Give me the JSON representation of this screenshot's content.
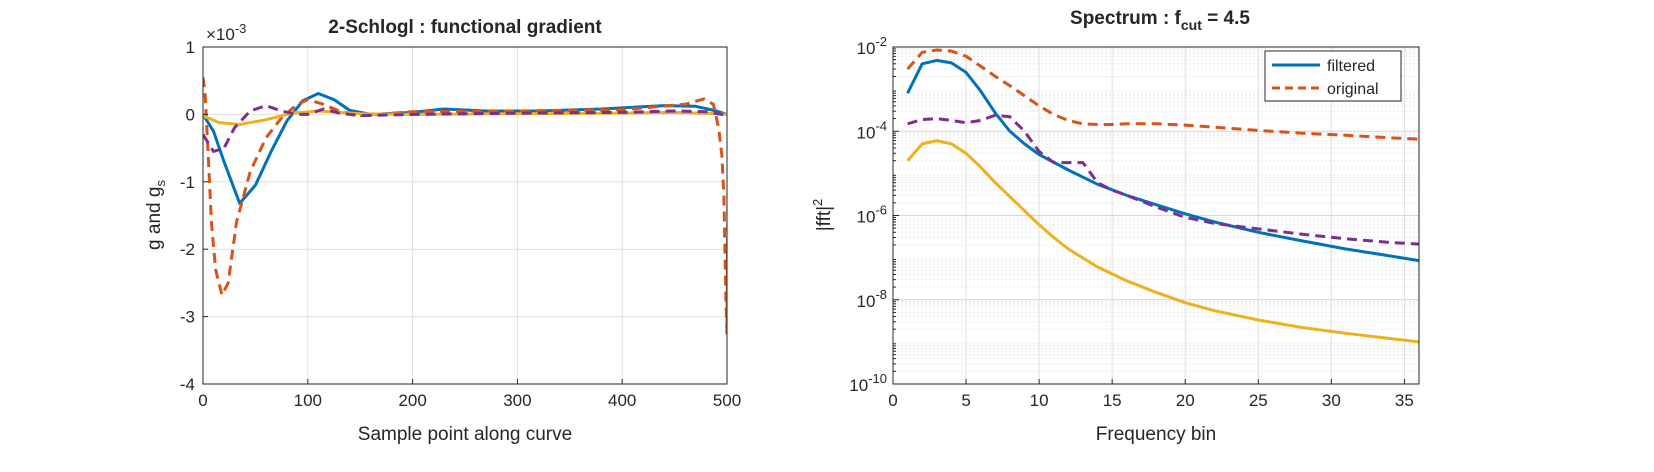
{
  "chart_data": [
    {
      "type": "line",
      "title": "2-Schlogl : functional gradient",
      "xlabel": "Sample point along curve",
      "ylabel": "g and g",
      "ylabel_sub": "s",
      "y_exponent": "×10",
      "y_exponent_power": "-3",
      "xlim": [
        0,
        500
      ],
      "ylim": [
        -4,
        1
      ],
      "grid": true,
      "x_ticks": [
        0,
        100,
        200,
        300,
        400,
        500
      ],
      "y_ticks": [
        -4,
        -3,
        -2,
        -1,
        0,
        1
      ],
      "series": [
        {
          "color": "#0072BD",
          "dash": "solid",
          "points": [
            [
              0,
              0
            ],
            [
              10,
              -0.25
            ],
            [
              20,
              -0.7
            ],
            [
              35,
              -1.32
            ],
            [
              50,
              -1.05
            ],
            [
              65,
              -0.55
            ],
            [
              80,
              -0.1
            ],
            [
              95,
              0.2
            ],
            [
              110,
              0.31
            ],
            [
              125,
              0.22
            ],
            [
              140,
              0.06
            ],
            [
              160,
              0.0
            ],
            [
              200,
              0.03
            ],
            [
              230,
              0.08
            ],
            [
              270,
              0.05
            ],
            [
              320,
              0.05
            ],
            [
              380,
              0.08
            ],
            [
              440,
              0.13
            ],
            [
              470,
              0.12
            ],
            [
              490,
              0.05
            ],
            [
              500,
              0.0
            ]
          ]
        },
        {
          "color": "#D95319",
          "dash": "dashed",
          "points": [
            [
              0,
              0.55
            ],
            [
              2,
              0.3
            ],
            [
              5,
              -0.6
            ],
            [
              8,
              -1.6
            ],
            [
              12,
              -2.3
            ],
            [
              18,
              -2.68
            ],
            [
              24,
              -2.5
            ],
            [
              32,
              -1.6
            ],
            [
              45,
              -0.85
            ],
            [
              60,
              -0.35
            ],
            [
              75,
              -0.05
            ],
            [
              90,
              0.15
            ],
            [
              100,
              0.22
            ],
            [
              115,
              0.15
            ],
            [
              130,
              0.05
            ],
            [
              150,
              -0.02
            ],
            [
              200,
              0.04
            ],
            [
              300,
              0.05
            ],
            [
              400,
              0.07
            ],
            [
              460,
              0.15
            ],
            [
              478,
              0.23
            ],
            [
              487,
              0.15
            ],
            [
              492,
              -0.2
            ],
            [
              495,
              -0.6
            ],
            [
              497,
              -1.2
            ],
            [
              498,
              -2.0
            ],
            [
              499,
              -2.8
            ],
            [
              500,
              -3.25
            ],
            [
              501,
              -1.0
            ]
          ]
        },
        {
          "color": "#EDB120",
          "dash": "solid",
          "points": [
            [
              0,
              -0.02
            ],
            [
              15,
              -0.12
            ],
            [
              35,
              -0.15
            ],
            [
              60,
              -0.08
            ],
            [
              85,
              0.02
            ],
            [
              110,
              0.05
            ],
            [
              150,
              0.01
            ],
            [
              200,
              0.0
            ],
            [
              300,
              0.01
            ],
            [
              400,
              0.02
            ],
            [
              450,
              0.03
            ],
            [
              490,
              0.01
            ],
            [
              500,
              0.0
            ]
          ]
        },
        {
          "color": "#7E2F8E",
          "dash": "dashed",
          "points": [
            [
              0,
              -0.3
            ],
            [
              10,
              -0.55
            ],
            [
              20,
              -0.5
            ],
            [
              30,
              -0.2
            ],
            [
              45,
              0.05
            ],
            [
              60,
              0.13
            ],
            [
              75,
              0.05
            ],
            [
              90,
              0.0
            ],
            [
              100,
              0.0
            ],
            [
              115,
              0.08
            ],
            [
              130,
              0.02
            ],
            [
              150,
              -0.02
            ],
            [
              200,
              0.0
            ],
            [
              300,
              0.02
            ],
            [
              400,
              0.03
            ],
            [
              450,
              0.05
            ],
            [
              480,
              0.04
            ],
            [
              495,
              0.0
            ],
            [
              500,
              0.0
            ]
          ]
        }
      ]
    },
    {
      "type": "line",
      "title_main": "Spectrum : f",
      "title_sub": "cut",
      "title_tail": " = 4.5",
      "xlabel": "Frequency bin",
      "ylabel": "|fft|",
      "ylabel_sup": "2",
      "y_scale": "log",
      "xlim": [
        0,
        36
      ],
      "ylim": [
        1e-10,
        0.01
      ],
      "grid": true,
      "minor_grid": true,
      "x_ticks": [
        0,
        5,
        10,
        15,
        20,
        25,
        30,
        35
      ],
      "y_ticks": [
        1e-10,
        1e-08,
        1e-06,
        0.0001,
        0.01
      ],
      "y_tick_labels": [
        {
          "base": "10",
          "exp": "-10"
        },
        {
          "base": "10",
          "exp": "-8"
        },
        {
          "base": "10",
          "exp": "-6"
        },
        {
          "base": "10",
          "exp": "-4"
        },
        {
          "base": "10",
          "exp": "-2"
        }
      ],
      "legend": {
        "position": "top-right",
        "entries": [
          {
            "name": "filtered",
            "color": "#0072BD",
            "dash": "solid"
          },
          {
            "name": "original",
            "color": "#D95319",
            "dash": "dashed"
          }
        ]
      },
      "series": [
        {
          "name": "filtered",
          "color": "#0072BD",
          "dash": "solid",
          "points": [
            [
              1,
              0.0008
            ],
            [
              2,
              0.004
            ],
            [
              3,
              0.0048
            ],
            [
              4,
              0.0042
            ],
            [
              5,
              0.0025
            ],
            [
              6,
              0.0009
            ],
            [
              7,
              0.00027
            ],
            [
              8,
              0.0001
            ],
            [
              9,
              5e-05
            ],
            [
              10,
              2.8e-05
            ],
            [
              12,
              1.2e-05
            ],
            [
              14,
              5.5e-06
            ],
            [
              16,
              3e-06
            ],
            [
              18,
              1.8e-06
            ],
            [
              20,
              1.1e-06
            ],
            [
              22,
              7e-07
            ],
            [
              25,
              4e-07
            ],
            [
              28,
              2.5e-07
            ],
            [
              31,
              1.6e-07
            ],
            [
              34,
              1.1e-07
            ],
            [
              36,
              8.5e-08
            ]
          ]
        },
        {
          "name": "original",
          "color": "#D95319",
          "dash": "dashed",
          "points": [
            [
              1,
              0.003
            ],
            [
              2,
              0.0075
            ],
            [
              3,
              0.0085
            ],
            [
              4,
              0.008
            ],
            [
              5,
              0.006
            ],
            [
              6,
              0.0035
            ],
            [
              7,
              0.002
            ],
            [
              8,
              0.0012
            ],
            [
              9,
              0.0007
            ],
            [
              10,
              0.0004
            ],
            [
              11,
              0.00025
            ],
            [
              12,
              0.00018
            ],
            [
              13,
              0.00015
            ],
            [
              14,
              0.000145
            ],
            [
              15,
              0.000145
            ],
            [
              16,
              0.00015
            ],
            [
              18,
              0.00015
            ],
            [
              20,
              0.00014
            ],
            [
              22,
              0.000125
            ],
            [
              25,
              0.000105
            ],
            [
              28,
              9e-05
            ],
            [
              31,
              8e-05
            ],
            [
              34,
              7e-05
            ],
            [
              36,
              6.5e-05
            ]
          ]
        },
        {
          "color": "#EDB120",
          "dash": "solid",
          "points": [
            [
              1,
              2e-05
            ],
            [
              2,
              5e-05
            ],
            [
              3,
              6e-05
            ],
            [
              4,
              5e-05
            ],
            [
              5,
              3e-05
            ],
            [
              6,
              1.4e-05
            ],
            [
              7,
              6e-06
            ],
            [
              8,
              2.8e-06
            ],
            [
              9,
              1.3e-06
            ],
            [
              10,
              6e-07
            ],
            [
              11,
              3e-07
            ],
            [
              12,
              1.6e-07
            ],
            [
              14,
              6e-08
            ],
            [
              16,
              2.8e-08
            ],
            [
              18,
              1.5e-08
            ],
            [
              20,
              8.5e-09
            ],
            [
              22,
              5.5e-09
            ],
            [
              25,
              3.3e-09
            ],
            [
              28,
              2.2e-09
            ],
            [
              31,
              1.6e-09
            ],
            [
              34,
              1.2e-09
            ],
            [
              36,
              1e-09
            ]
          ]
        },
        {
          "color": "#7E2F8E",
          "dash": "dashed",
          "points": [
            [
              1,
              0.00015
            ],
            [
              2,
              0.00019
            ],
            [
              3,
              0.0002
            ],
            [
              4,
              0.00018
            ],
            [
              5,
              0.00016
            ],
            [
              6,
              0.00018
            ],
            [
              7,
              0.00024
            ],
            [
              8,
              0.00022
            ],
            [
              9,
              0.0001
            ],
            [
              10,
              3.3e-05
            ],
            [
              11,
              1.8e-05
            ],
            [
              12,
              1.8e-05
            ],
            [
              13,
              1.8e-05
            ],
            [
              14,
              6e-06
            ],
            [
              15,
              4e-06
            ],
            [
              16,
              3e-06
            ],
            [
              17,
              2.2e-06
            ],
            [
              18,
              1.6e-06
            ],
            [
              20,
              9e-07
            ],
            [
              22,
              6.5e-07
            ],
            [
              25,
              4.8e-07
            ],
            [
              28,
              3.6e-07
            ],
            [
              31,
              2.8e-07
            ],
            [
              34,
              2.3e-07
            ],
            [
              36,
              2.1e-07
            ]
          ]
        }
      ]
    }
  ]
}
